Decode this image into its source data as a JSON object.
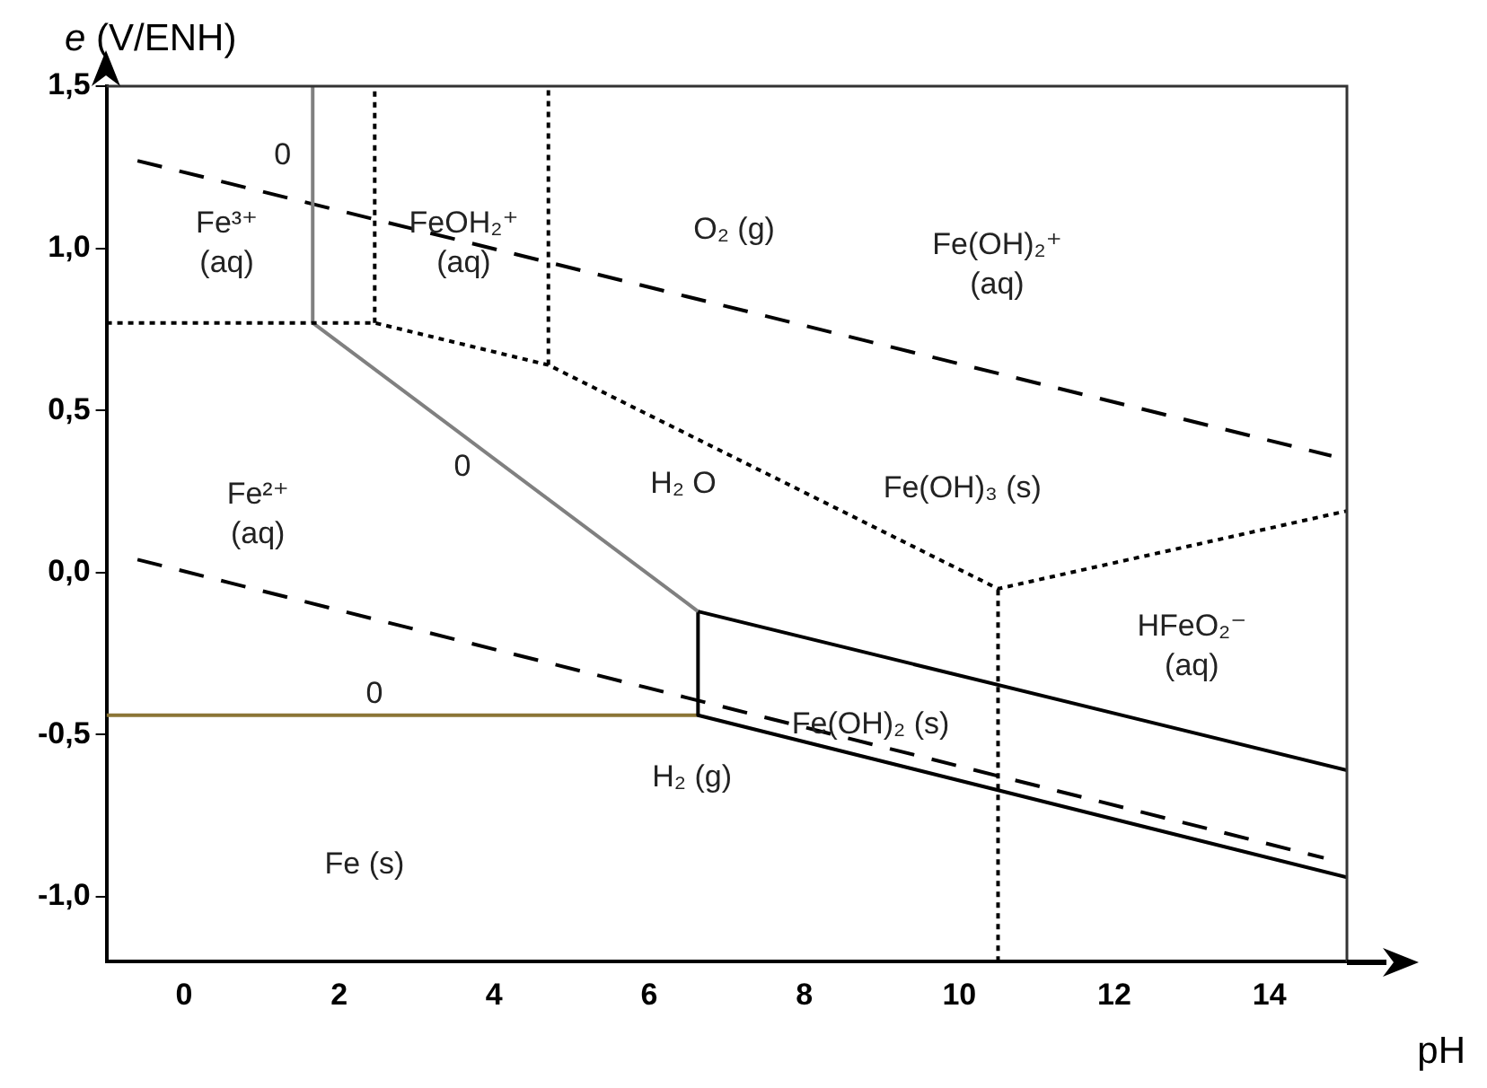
{
  "chart_data": {
    "type": "line",
    "xlabel": "pH",
    "ylabel": "e (V/ENH)",
    "xlim": [
      -1,
      15
    ],
    "ylim": [
      -1.2,
      1.5
    ],
    "xticks": [
      0,
      2,
      4,
      6,
      8,
      10,
      12,
      14
    ],
    "yticks": [
      {
        "value": -1,
        "label": "-1,0"
      },
      {
        "value": -0.5,
        "label": "-0,5"
      },
      {
        "value": 0,
        "label": "0,0"
      },
      {
        "value": 0.5,
        "label": "0,5"
      },
      {
        "value": 1,
        "label": "1,0"
      },
      {
        "value": 1.5,
        "label": "1,5"
      }
    ],
    "grid": false,
    "legend": false,
    "marker": "none",
    "series": [
      {
        "color": "#000000",
        "line_style": "dotted",
        "x": [
          -1,
          1.66,
          2.46,
          4.7,
          10.5,
          15
        ],
        "values": [
          0.77,
          0.77,
          0.77,
          0.64,
          -0.05,
          0.19
        ]
      },
      {
        "color": "#808080",
        "line_style": "solid",
        "x": [
          1.66,
          1.66
        ],
        "values": [
          0.77,
          1.5
        ]
      },
      {
        "color": "#000000",
        "line_style": "dotted",
        "x": [
          2.46,
          2.46
        ],
        "values": [
          0.77,
          1.5
        ]
      },
      {
        "color": "#000000",
        "line_style": "dotted",
        "x": [
          4.7,
          4.7
        ],
        "values": [
          0.64,
          1.5
        ]
      },
      {
        "color": "#808080",
        "line_style": "solid",
        "x": [
          1.66,
          6.63
        ],
        "values": [
          0.77,
          -0.12
        ]
      },
      {
        "color": "#000000",
        "line_style": "solid",
        "x": [
          6.63,
          6.63
        ],
        "values": [
          -0.12,
          -0.44
        ]
      },
      {
        "color": "#8b7536",
        "line_style": "solid",
        "x": [
          -1,
          6.63
        ],
        "values": [
          -0.44,
          -0.44
        ]
      },
      {
        "color": "#000000",
        "line_style": "solid",
        "x": [
          6.63,
          15
        ],
        "values": [
          -0.12,
          -0.61
        ]
      },
      {
        "color": "#000000",
        "line_style": "solid",
        "x": [
          6.63,
          15
        ],
        "values": [
          -0.44,
          -0.94
        ]
      },
      {
        "color": "#000000",
        "line_style": "dotted",
        "x": [
          10.5,
          10.5
        ],
        "values": [
          -1.2,
          -0.05
        ]
      },
      {
        "color": "#000000",
        "line_style": "dashed",
        "x": [
          -0.6,
          14.8
        ],
        "values": [
          1.27,
          0.36
        ]
      },
      {
        "color": "#000000",
        "line_style": "dashed",
        "x": [
          -0.6,
          14.7
        ],
        "values": [
          0.04,
          -0.88
        ]
      }
    ],
    "annotations": [
      "0",
      "Fe³⁺\n(aq)",
      "FeOH₂⁺\n(aq)",
      "O₂ (g)",
      "Fe(OH)₂⁺\n(aq)",
      "0",
      "Fe²⁺\n(aq)",
      "H₂ O",
      "Fe(OH)₃ (s)",
      "HFeO₂⁻\n(aq)",
      "0",
      "Fe(OH)₂ (s)",
      "H₂ (g)",
      "Fe (s)"
    ]
  }
}
